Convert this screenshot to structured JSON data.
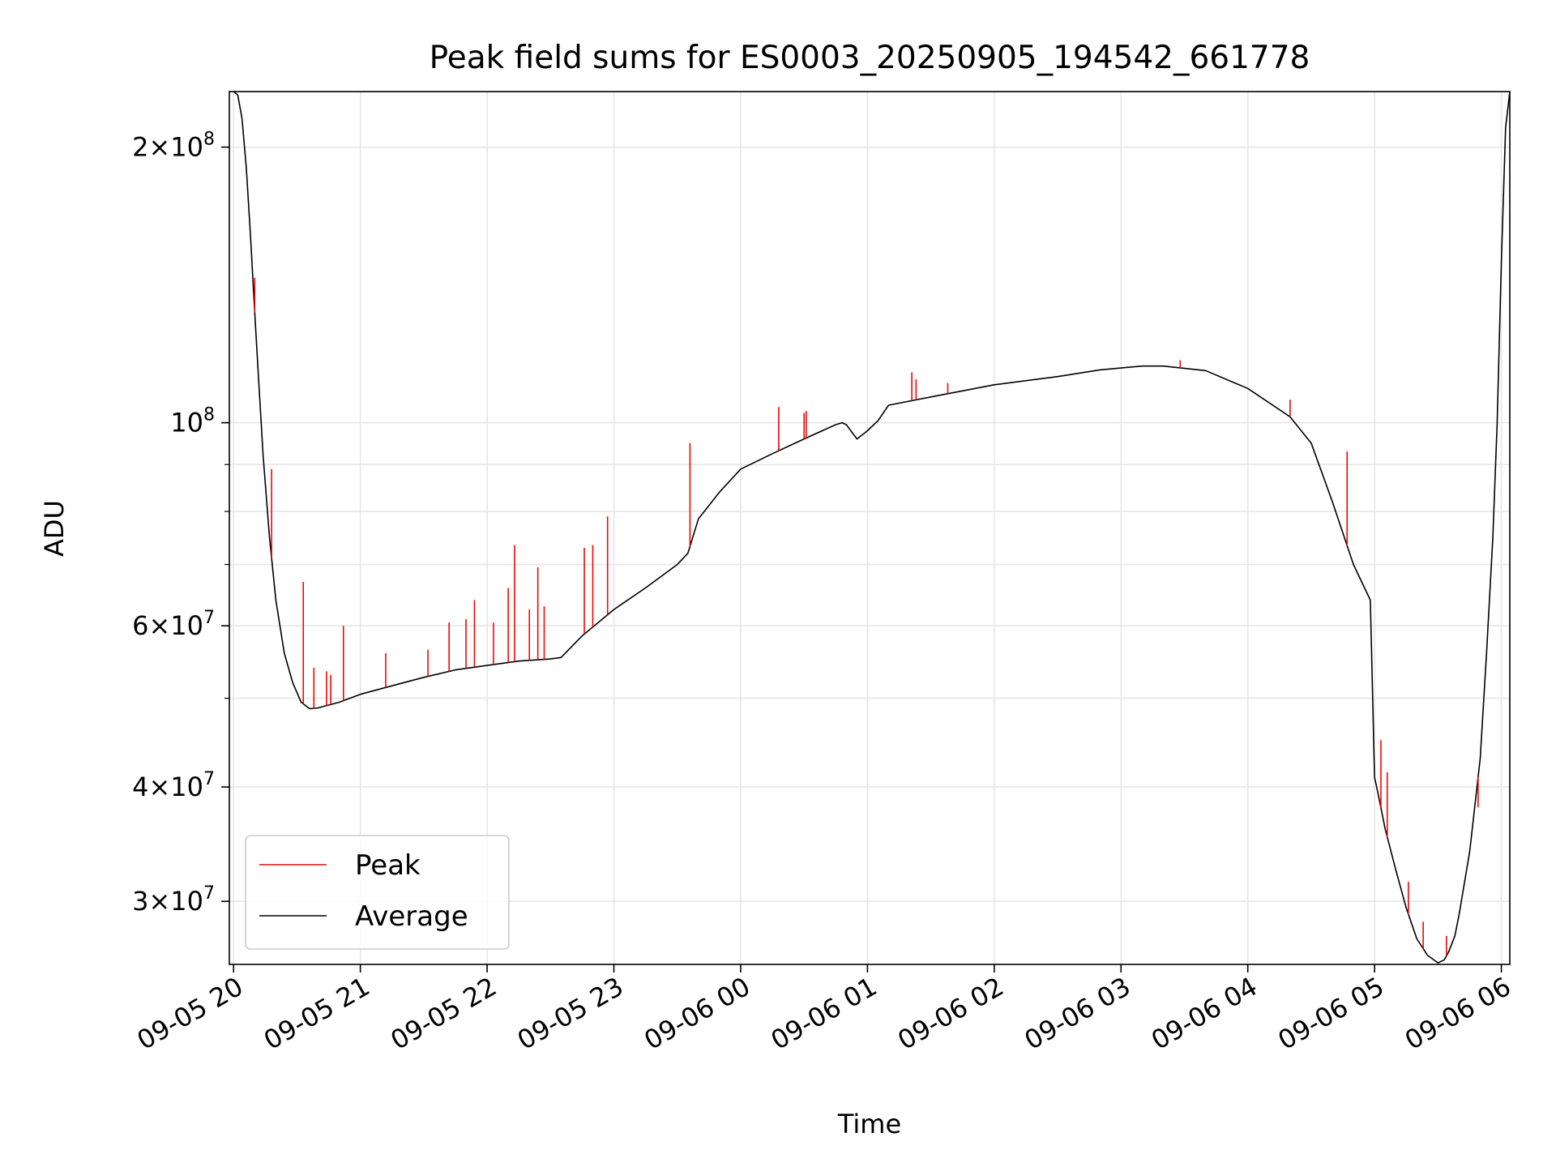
{
  "chart_data": {
    "type": "line",
    "title": "Peak field sums for ES0003_20250905_194542_661778",
    "xlabel": "Time",
    "ylabel": "ADU",
    "yscale": "log",
    "ylim": [
      25600000,
      230000000
    ],
    "xlim": [
      "09-05 19:58",
      "09-06 06:04"
    ],
    "grid": true,
    "legend": {
      "location": "lower-left",
      "entries": [
        "Peak",
        "Average"
      ]
    },
    "x_ticks": [
      "09-05 20",
      "09-05 21",
      "09-05 22",
      "09-05 23",
      "09-06 00",
      "09-06 01",
      "09-06 02",
      "09-06 03",
      "09-06 04",
      "09-06 05",
      "09-06 06"
    ],
    "y_ticks": [
      {
        "value": 200000000,
        "mantissa": "2",
        "exponent": "8"
      },
      {
        "value": 100000000,
        "mantissa": "",
        "exponent": "8"
      },
      {
        "value": 60000000,
        "mantissa": "6",
        "exponent": "7"
      },
      {
        "value": 40000000,
        "mantissa": "4",
        "exponent": "7"
      },
      {
        "value": 30000000,
        "mantissa": "3",
        "exponent": "7"
      }
    ],
    "series": [
      {
        "name": "Average",
        "color": "#000000",
        "x": [
          "09-05 20:00",
          "09-05 20:02",
          "09-05 20:04",
          "09-05 20:06",
          "09-05 20:08",
          "09-05 20:10",
          "09-05 20:12",
          "09-05 20:14",
          "09-05 20:17",
          "09-05 20:20",
          "09-05 20:24",
          "09-05 20:28",
          "09-05 20:32",
          "09-05 20:36",
          "09-05 20:40",
          "09-05 20:50",
          "09-05 21:00",
          "09-05 21:15",
          "09-05 21:30",
          "09-05 21:45",
          "09-05 22:00",
          "09-05 22:15",
          "09-05 22:30",
          "09-05 22:35",
          "09-05 22:45",
          "09-05 23:00",
          "09-05 23:15",
          "09-05 23:30",
          "09-05 23:35",
          "09-05 23:40",
          "09-05 23:50",
          "09-06 00:00",
          "09-06 00:15",
          "09-06 00:30",
          "09-06 00:45",
          "09-06 00:48",
          "09-06 00:50",
          "09-06 00:55",
          "09-06 01:00",
          "09-06 01:05",
          "09-06 01:10",
          "09-06 01:30",
          "09-06 02:00",
          "09-06 02:30",
          "09-06 02:50",
          "09-06 03:10",
          "09-06 03:20",
          "09-06 03:40",
          "09-06 04:00",
          "09-06 04:20",
          "09-06 04:30",
          "09-06 04:40",
          "09-06 04:50",
          "09-06 04:58",
          "09-06 05:00",
          "09-06 05:01",
          "09-06 05:02",
          "09-06 05:05",
          "09-06 05:10",
          "09-06 05:15",
          "09-06 05:20",
          "09-06 05:25",
          "09-06 05:30",
          "09-06 05:33",
          "09-06 05:35",
          "09-06 05:38",
          "09-06 05:40",
          "09-06 05:45",
          "09-06 05:50",
          "09-06 05:53",
          "09-06 05:56",
          "09-06 05:58",
          "09-06 06:00",
          "09-06 06:02",
          "09-06 06:04"
        ],
        "y": [
          230000000,
          228000000,
          215000000,
          190000000,
          160000000,
          132000000,
          110000000,
          92000000,
          75000000,
          64000000,
          56000000,
          52000000,
          49500000,
          48700000,
          48800000,
          49500000,
          50500000,
          51600000,
          52700000,
          53700000,
          54300000,
          54900000,
          55200000,
          55400000,
          58500000,
          62500000,
          66000000,
          70000000,
          72000000,
          78500000,
          84000000,
          89000000,
          92500000,
          96000000,
          99500000,
          100000000,
          99500000,
          96000000,
          98000000,
          100500000,
          104500000,
          106700000,
          110000000,
          112300000,
          114200000,
          115300000,
          115300000,
          114000000,
          109000000,
          101500000,
          95000000,
          82000000,
          70000000,
          64000000,
          41000000,
          40000000,
          39000000,
          36000000,
          32500000,
          29500000,
          27300000,
          26200000,
          25700000,
          25900000,
          26400000,
          27500000,
          29000000,
          34000000,
          43000000,
          56000000,
          75000000,
          100000000,
          150000000,
          210000000,
          230000000
        ]
      },
      {
        "name": "Peak",
        "color": "#ff0000",
        "x": [
          "09-05 20:10",
          "09-05 20:18",
          "09-05 20:33",
          "09-05 20:38",
          "09-05 20:44",
          "09-05 20:46",
          "09-05 20:52",
          "09-05 21:12",
          "09-05 21:32",
          "09-05 21:42",
          "09-05 21:50",
          "09-05 21:54",
          "09-05 22:03",
          "09-05 22:10",
          "09-05 22:13",
          "09-05 22:20",
          "09-05 22:24",
          "09-05 22:27",
          "09-05 22:46",
          "09-05 22:50",
          "09-05 22:57",
          "09-05 23:36",
          "09-06 00:18",
          "09-06 00:30",
          "09-06 00:31",
          "09-06 01:21",
          "09-06 01:23",
          "09-06 01:38",
          "09-06 03:28",
          "09-06 04:20",
          "09-06 04:47",
          "09-06 05:03",
          "09-06 05:06",
          "09-06 05:16",
          "09-06 05:23",
          "09-06 05:34",
          "09-06 05:49"
        ],
        "y": [
          144000000,
          89000000,
          67000000,
          54000000,
          53500000,
          53000000,
          60000000,
          56000000,
          56500000,
          60500000,
          61000000,
          64000000,
          60500000,
          66000000,
          73500000,
          62500000,
          69500000,
          63000000,
          73000000,
          73500000,
          79000000,
          95000000,
          104000000,
          102500000,
          103000000,
          113500000,
          111500000,
          110500000,
          117000000,
          106000000,
          93000000,
          45000000,
          41500000,
          31500000,
          28500000,
          27500000,
          38000000
        ]
      }
    ]
  }
}
